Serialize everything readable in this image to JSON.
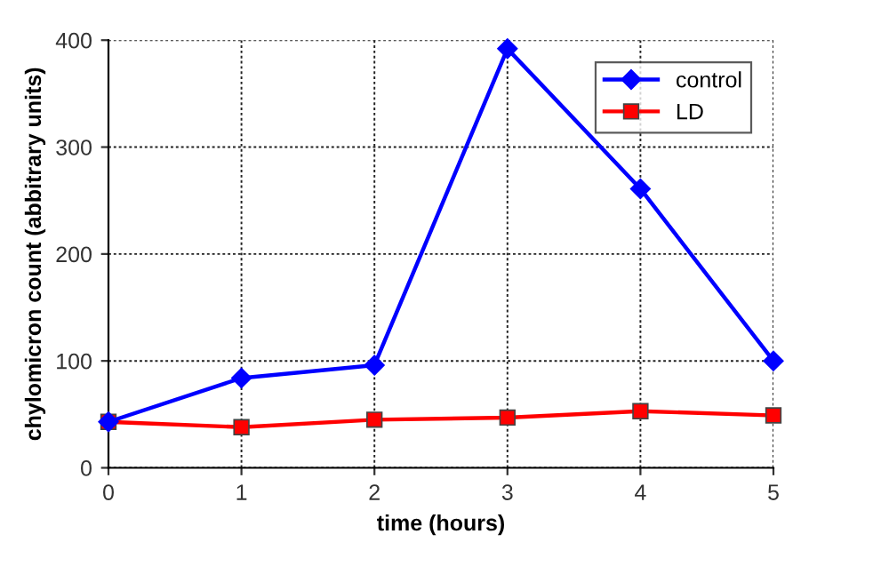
{
  "chart_data": {
    "type": "line",
    "xlabel": "time (hours)",
    "ylabel": "chylomicron count (abbitrary units)",
    "x": [
      0,
      1,
      2,
      3,
      4,
      5
    ],
    "series": [
      {
        "name": "control",
        "color": "#0000ff",
        "marker": "diamond",
        "values": [
          43,
          84,
          96,
          392,
          261,
          100
        ]
      },
      {
        "name": "LD",
        "color": "#ff0000",
        "marker": "square",
        "values": [
          43,
          38,
          45,
          47,
          53,
          49
        ]
      }
    ],
    "xlim": [
      0,
      5
    ],
    "xticks": [
      0,
      1,
      2,
      3,
      4,
      5
    ],
    "ylim": [
      0,
      400
    ],
    "yticks": [
      0,
      100,
      200,
      300,
      400
    ],
    "grid": true,
    "legend": "top right",
    "line_style": "solid"
  }
}
